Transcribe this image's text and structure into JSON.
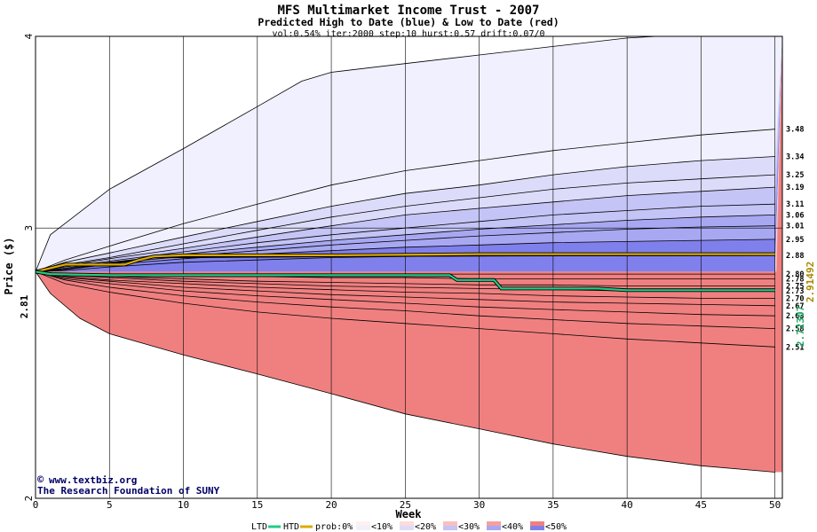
{
  "header": {
    "title": "MFS Multimarket Income Trust - 2007",
    "subtitle": "Predicted High to Date (blue) &  Low to Date (red)",
    "params": "vol:0.54% iter:2000 step:10 hurst:0.57 drift:0.07/0"
  },
  "watermark": {
    "site": "www.textbiz.org",
    "org": "The Research Foundation of SUNY"
  },
  "legend": {
    "ltd_label": "LTD",
    "htd_label": "HTD",
    "prob_label": "prob:0%",
    "items": [
      "<10%",
      "<20%",
      "<30%",
      "<40%",
      "<50%"
    ],
    "ltd_color": "#22cc88",
    "htd_color": "#ddaa00",
    "band_colors_blue": [
      "#f0f0fe",
      "#dcdcfa",
      "#c4c4f6",
      "#a8a8f2",
      "#8080ec"
    ],
    "band_colors_red": [
      "#fff0f0",
      "#fcdcdc",
      "#f8c0c0",
      "#f4a0a0",
      "#f08080"
    ]
  },
  "chart_data": {
    "type": "area",
    "title": "MFS Multimarket Income Trust - 2007",
    "subtitle": "Predicted High to Date (blue) &  Low to Date (red)",
    "xlabel": "Week",
    "ylabel": "Price ($)",
    "xlim": [
      0,
      50.5
    ],
    "ylim": [
      2,
      4
    ],
    "y_scale": "log",
    "x_ticks": [
      0,
      5,
      10,
      15,
      20,
      25,
      30,
      35,
      40,
      45,
      50
    ],
    "y_ticks": [
      2,
      3,
      4
    ],
    "grid": true,
    "start_price": 2.81,
    "start_price_label": "2.81",
    "ltd_value_label": "2.72307",
    "htd_value_label": "2.91492",
    "right_labels": [
      "3.48",
      "3.34",
      "3.25",
      "3.19",
      "3.11",
      "3.06",
      "3.01",
      "2.95",
      "2.88",
      "2.80",
      "2.78",
      "2.75",
      "2.73",
      "2.70",
      "2.67",
      "2.63",
      "2.58",
      "2.51"
    ],
    "blue_envelopes": [
      {
        "x": [
          0,
          1,
          5,
          10,
          15,
          18,
          20,
          25,
          30,
          35,
          40,
          42
        ],
        "y": [
          2.81,
          2.97,
          3.18,
          3.38,
          3.6,
          3.74,
          3.79,
          3.84,
          3.89,
          3.94,
          3.99,
          4.0
        ]
      },
      {
        "x": [
          0,
          2,
          5,
          10,
          15,
          20,
          25,
          30,
          35,
          40,
          45,
          50
        ],
        "y": [
          2.81,
          2.86,
          2.92,
          3.02,
          3.11,
          3.2,
          3.27,
          3.32,
          3.37,
          3.41,
          3.45,
          3.48
        ]
      },
      {
        "x": [
          0,
          2,
          5,
          10,
          15,
          20,
          25,
          30,
          35,
          40,
          45,
          50
        ],
        "y": [
          2.81,
          2.85,
          2.89,
          2.96,
          3.03,
          3.1,
          3.16,
          3.2,
          3.25,
          3.29,
          3.32,
          3.34
        ]
      },
      {
        "x": [
          0,
          2,
          5,
          10,
          15,
          20,
          25,
          30,
          35,
          40,
          45,
          50
        ],
        "y": [
          2.81,
          2.84,
          2.87,
          2.93,
          2.99,
          3.05,
          3.1,
          3.14,
          3.18,
          3.21,
          3.23,
          3.25
        ]
      },
      {
        "x": [
          0,
          2,
          5,
          10,
          15,
          20,
          25,
          30,
          35,
          40,
          45,
          50
        ],
        "y": [
          2.81,
          2.835,
          2.865,
          2.91,
          2.96,
          3.01,
          3.06,
          3.09,
          3.12,
          3.15,
          3.17,
          3.19
        ]
      },
      {
        "x": [
          0,
          2,
          5,
          10,
          15,
          20,
          25,
          30,
          35,
          40,
          45,
          50
        ],
        "y": [
          2.81,
          2.83,
          2.855,
          2.895,
          2.935,
          2.97,
          3.0,
          3.03,
          3.06,
          3.08,
          3.1,
          3.11
        ]
      },
      {
        "x": [
          0,
          2,
          5,
          10,
          15,
          20,
          25,
          30,
          35,
          40,
          45,
          50
        ],
        "y": [
          2.81,
          2.825,
          2.85,
          2.885,
          2.915,
          2.945,
          2.97,
          2.995,
          3.015,
          3.035,
          3.05,
          3.06
        ]
      },
      {
        "x": [
          0,
          2,
          5,
          10,
          15,
          20,
          25,
          30,
          35,
          40,
          45,
          50
        ],
        "y": [
          2.81,
          2.82,
          2.845,
          2.875,
          2.9,
          2.925,
          2.945,
          2.965,
          2.98,
          2.995,
          3.005,
          3.01
        ]
      },
      {
        "x": [
          0,
          2,
          5,
          10,
          15,
          20,
          25,
          30,
          35,
          40,
          45,
          50
        ],
        "y": [
          2.81,
          2.82,
          2.84,
          2.865,
          2.885,
          2.9,
          2.915,
          2.925,
          2.935,
          2.94,
          2.945,
          2.95
        ]
      },
      {
        "x": [
          0,
          2,
          5,
          10,
          15,
          20,
          25,
          30,
          35,
          40,
          45,
          50
        ],
        "y": [
          2.81,
          2.815,
          2.83,
          2.85,
          2.86,
          2.87,
          2.875,
          2.878,
          2.88,
          2.88,
          2.88,
          2.88
        ]
      }
    ],
    "red_envelopes": [
      {
        "x": [
          0,
          2,
          5,
          10,
          15,
          20,
          25,
          30,
          35,
          40,
          45,
          50
        ],
        "y": [
          2.81,
          2.8,
          2.8,
          2.8,
          2.8,
          2.8,
          2.8,
          2.8,
          2.8,
          2.8,
          2.8,
          2.8
        ]
      },
      {
        "x": [
          0,
          2,
          5,
          10,
          15,
          20,
          25,
          30,
          35,
          40,
          45,
          50
        ],
        "y": [
          2.81,
          2.8,
          2.795,
          2.79,
          2.79,
          2.785,
          2.785,
          2.78,
          2.78,
          2.78,
          2.78,
          2.78
        ]
      },
      {
        "x": [
          0,
          2,
          5,
          10,
          15,
          20,
          25,
          30,
          35,
          40,
          45,
          50
        ],
        "y": [
          2.81,
          2.8,
          2.79,
          2.78,
          2.77,
          2.765,
          2.76,
          2.755,
          2.755,
          2.75,
          2.75,
          2.75
        ]
      },
      {
        "x": [
          0,
          2,
          5,
          10,
          15,
          20,
          25,
          30,
          35,
          40,
          45,
          50
        ],
        "y": [
          2.81,
          2.795,
          2.785,
          2.77,
          2.76,
          2.75,
          2.745,
          2.74,
          2.735,
          2.73,
          2.73,
          2.73
        ]
      },
      {
        "x": [
          0,
          2,
          5,
          10,
          15,
          20,
          25,
          30,
          35,
          40,
          45,
          50
        ],
        "y": [
          2.81,
          2.79,
          2.775,
          2.76,
          2.745,
          2.735,
          2.725,
          2.72,
          2.71,
          2.705,
          2.7,
          2.7
        ]
      },
      {
        "x": [
          0,
          2,
          5,
          10,
          15,
          20,
          25,
          30,
          35,
          40,
          45,
          50
        ],
        "y": [
          2.81,
          2.785,
          2.77,
          2.745,
          2.73,
          2.715,
          2.705,
          2.695,
          2.685,
          2.68,
          2.675,
          2.67
        ]
      },
      {
        "x": [
          0,
          2,
          5,
          10,
          15,
          20,
          25,
          30,
          35,
          40,
          45,
          50
        ],
        "y": [
          2.81,
          2.78,
          2.76,
          2.73,
          2.71,
          2.695,
          2.68,
          2.665,
          2.655,
          2.645,
          2.635,
          2.63
        ]
      },
      {
        "x": [
          0,
          2,
          5,
          10,
          15,
          20,
          25,
          30,
          35,
          40,
          45,
          50
        ],
        "y": [
          2.81,
          2.775,
          2.745,
          2.71,
          2.685,
          2.665,
          2.65,
          2.63,
          2.615,
          2.6,
          2.59,
          2.58
        ]
      },
      {
        "x": [
          0,
          2,
          5,
          10,
          15,
          20,
          25,
          30,
          35,
          40,
          45,
          50
        ],
        "y": [
          2.81,
          2.76,
          2.725,
          2.68,
          2.645,
          2.62,
          2.6,
          2.58,
          2.56,
          2.54,
          2.525,
          2.51
        ]
      },
      {
        "x": [
          0,
          1,
          3,
          5,
          10,
          15,
          20,
          25,
          30,
          35,
          40,
          45,
          50
        ],
        "y": [
          2.81,
          2.72,
          2.62,
          2.56,
          2.48,
          2.41,
          2.34,
          2.27,
          2.22,
          2.17,
          2.13,
          2.1,
          2.08
        ]
      }
    ],
    "htd_line": {
      "x": [
        0,
        1,
        2,
        6,
        7,
        8,
        10,
        20,
        30,
        40,
        50
      ],
      "y": [
        2.81,
        2.825,
        2.84,
        2.84,
        2.86,
        2.875,
        2.88,
        2.88,
        2.885,
        2.885,
        2.885
      ]
    },
    "ltd_line": {
      "x": [
        0,
        1,
        5,
        10,
        28,
        28.5,
        31,
        31.5,
        38,
        40,
        50
      ],
      "y": [
        2.81,
        2.8,
        2.795,
        2.795,
        2.795,
        2.775,
        2.775,
        2.74,
        2.74,
        2.733,
        2.733
      ]
    },
    "median_line": {
      "x": [
        0,
        2,
        8,
        20,
        32,
        50
      ],
      "y": [
        2.81,
        2.82,
        2.87,
        2.875,
        2.878,
        2.88
      ]
    }
  }
}
